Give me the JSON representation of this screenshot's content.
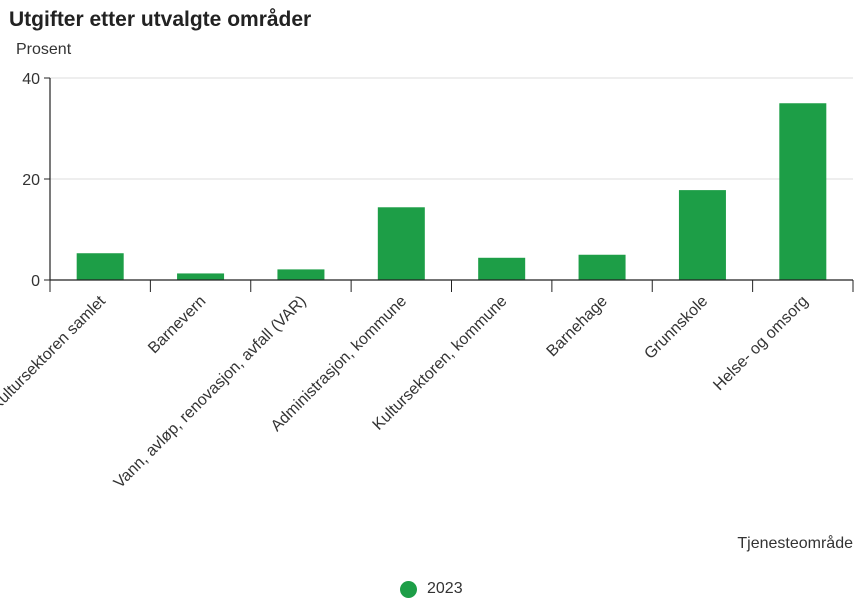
{
  "colors": {
    "bar": "#1d9e47",
    "axis": "#222222",
    "grid": "#dddddd"
  },
  "chart_data": {
    "type": "bar",
    "title": "Utgifter etter utvalgte områder",
    "ylabel": "Prosent",
    "xlabel": "Tjenesteområde",
    "ylim": [
      0,
      40
    ],
    "yticks": [
      0,
      20,
      40
    ],
    "grid": true,
    "legend_position": "bottom",
    "categories": [
      "Kultursektoren samlet",
      "Barnevern",
      "Vann, avløp, renovasjon, avfall (VAR)",
      "Administrasjon, kommune",
      "Kultursektoren, kommune",
      "Barnehage",
      "Grunnskole",
      "Helse- og omsorg"
    ],
    "series": [
      {
        "name": "2023",
        "values": [
          5.3,
          1.3,
          2.1,
          14.4,
          4.4,
          5.0,
          17.8,
          35.0
        ]
      }
    ]
  }
}
